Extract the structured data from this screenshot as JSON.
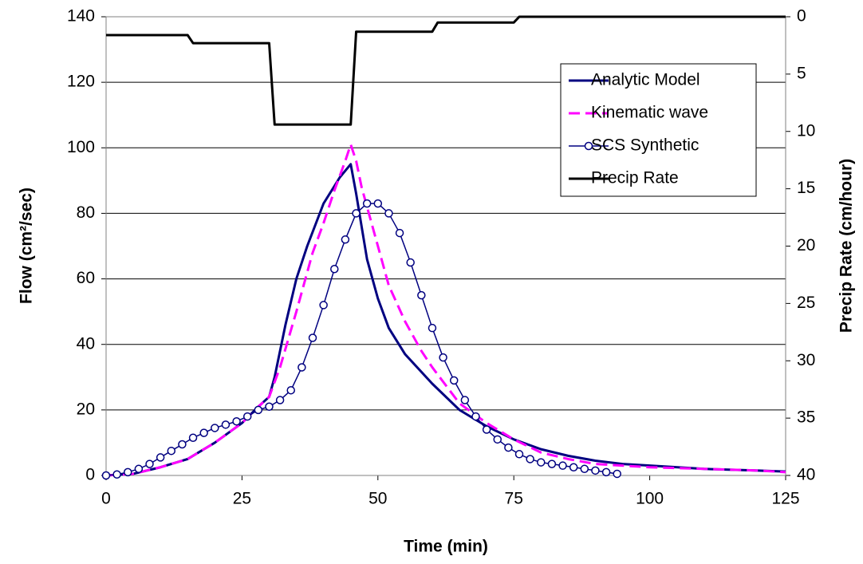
{
  "chart_data": {
    "type": "line",
    "xlabel": "Time (min)",
    "ylabel": "Flow (cm²/sec)",
    "y2label": "Precip Rate (cm/hour)",
    "xlim": [
      0,
      125
    ],
    "xticks": [
      0,
      25,
      50,
      75,
      100,
      125
    ],
    "ylim": [
      0,
      140
    ],
    "yticks": [
      0,
      20,
      40,
      60,
      80,
      100,
      120,
      140
    ],
    "y2lim": [
      40,
      0
    ],
    "y2ticks": [
      0,
      5,
      10,
      15,
      20,
      25,
      30,
      35,
      40
    ],
    "grid": true,
    "legend": "upper right",
    "series": [
      {
        "name": "Analytic Model",
        "color": "#000080",
        "style": "solid",
        "width": 3,
        "x": [
          0,
          5,
          10,
          15,
          20,
          25,
          28,
          30,
          31,
          33,
          35,
          37,
          40,
          43,
          45,
          46,
          48,
          50,
          52,
          55,
          60,
          65,
          70,
          75,
          80,
          85,
          90,
          95,
          100,
          110,
          120,
          125
        ],
        "values": [
          0,
          0.5,
          2.5,
          5,
          10,
          16,
          21,
          24,
          30,
          46,
          60,
          70,
          83,
          91,
          95,
          86,
          66,
          54,
          45,
          37,
          28,
          20,
          15,
          11,
          8,
          6,
          4.5,
          3.5,
          3,
          2,
          1.5,
          1.2
        ]
      },
      {
        "name": "Kinematic wave",
        "color": "#ff00ff",
        "style": "dashed",
        "width": 3,
        "x": [
          0,
          5,
          10,
          15,
          20,
          25,
          28,
          30,
          32,
          35,
          38,
          40,
          42,
          44,
          45,
          46,
          47,
          50,
          52,
          55,
          58,
          60,
          65,
          70,
          75,
          80,
          85,
          90,
          100,
          110,
          120,
          125
        ],
        "values": [
          0,
          0.5,
          2.5,
          5,
          10,
          16,
          21,
          24,
          33,
          50,
          68,
          77,
          87,
          96,
          101,
          96,
          88,
          70,
          58,
          47,
          38,
          33,
          22,
          16,
          11,
          7,
          5,
          3.5,
          2.5,
          2,
          1.5,
          1
        ]
      },
      {
        "name": "SCS Synthetic",
        "color": "#000080",
        "style": "marker",
        "width": 1.5,
        "x": [
          0,
          2,
          4,
          6,
          8,
          10,
          12,
          14,
          16,
          18,
          20,
          22,
          24,
          26,
          28,
          30,
          32,
          34,
          36,
          38,
          40,
          42,
          44,
          46,
          48,
          50,
          52,
          54,
          56,
          58,
          60,
          62,
          64,
          66,
          68,
          70,
          72,
          74,
          76,
          78,
          80,
          82,
          84,
          86,
          88,
          90,
          92,
          94
        ],
        "values": [
          0,
          0.3,
          1,
          2,
          3.5,
          5.5,
          7.5,
          9.5,
          11.5,
          13,
          14.5,
          15.5,
          16.5,
          18,
          20,
          21,
          23,
          26,
          33,
          42,
          52,
          63,
          72,
          80,
          83,
          83,
          80,
          74,
          65,
          55,
          45,
          36,
          29,
          23,
          18,
          14,
          11,
          8.5,
          6.5,
          5,
          4,
          3.5,
          3,
          2.5,
          2,
          1.5,
          1,
          0.5
        ]
      },
      {
        "name": "Precip Rate",
        "color": "#000000",
        "style": "solid",
        "width": 3,
        "axis": "y2",
        "x": [
          0,
          15,
          16,
          30,
          31,
          45,
          46,
          60,
          61,
          75,
          76,
          125
        ],
        "values": [
          1.6,
          1.6,
          2.3,
          2.3,
          9.4,
          9.4,
          1.3,
          1.3,
          0.5,
          0.5,
          0,
          0
        ]
      }
    ]
  }
}
